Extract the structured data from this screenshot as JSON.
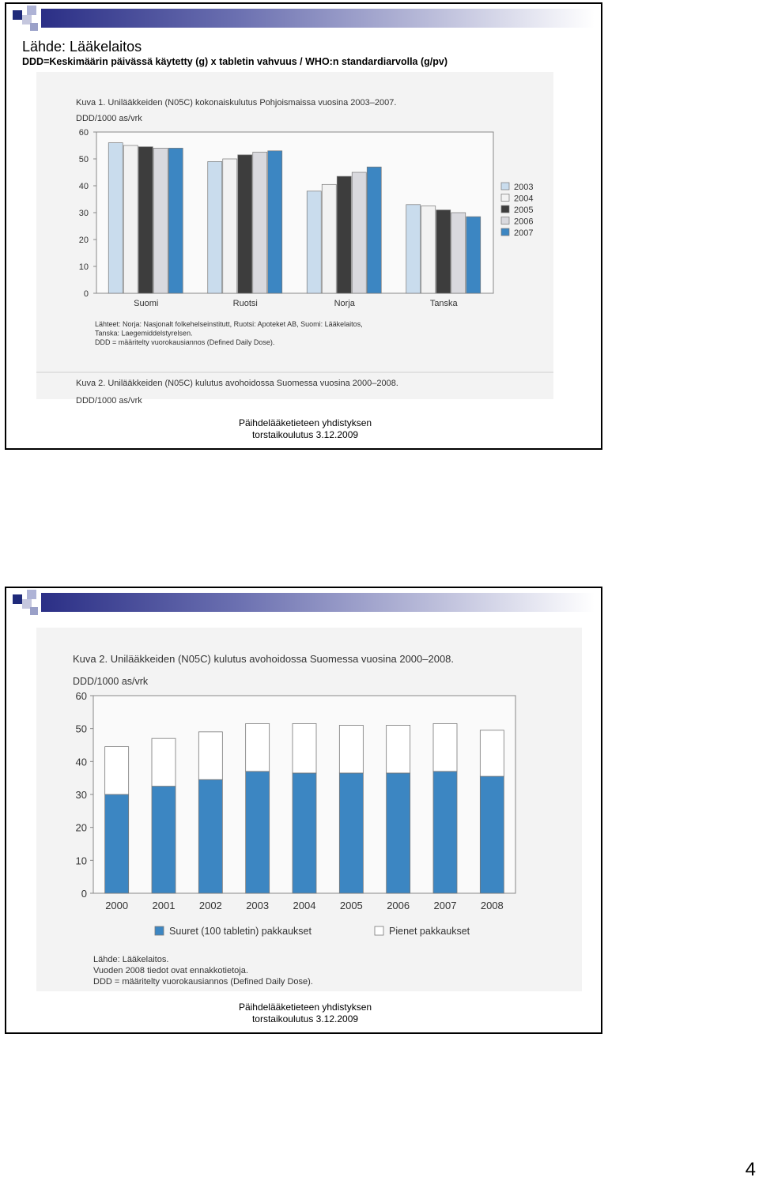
{
  "slides": [
    {
      "title": "Lähde: Lääkelaitos",
      "subtitle": "DDD=Keskimäärin päivässä käytetty (g) x tabletin vahvuus / WHO:n standardiarvolla (g/pv)",
      "footer_line1": "Päihdelääketieteen yhdistyksen",
      "footer_line2": "torstaikoulutus 3.12.2009"
    },
    {
      "footer_line1": "Päihdelääketieteen yhdistyksen",
      "footer_line2": "torstaikoulutus 3.12.2009"
    }
  ],
  "page_number": "4",
  "chart_data": [
    {
      "type": "bar",
      "title": "Kuva 1. Unilääkkeiden (N05C) kokonaiskulutus Pohjoismaissa vuosina 2003–2007.",
      "ylabel": "DDD/1000 as/vrk",
      "xlabel": "",
      "ylim": [
        0,
        60
      ],
      "yticks": [
        "0",
        "10",
        "20",
        "30",
        "40",
        "50",
        "60"
      ],
      "categories": [
        "Suomi",
        "Ruotsi",
        "Norja",
        "Tanska"
      ],
      "series": [
        {
          "name": "2003",
          "color": "#c9dced",
          "values": [
            56,
            49,
            38,
            33
          ]
        },
        {
          "name": "2004",
          "color": "#f2f2f2",
          "values": [
            55,
            50,
            40.5,
            32.5
          ]
        },
        {
          "name": "2005",
          "color": "#3d3d3d",
          "values": [
            54.5,
            51.5,
            43.5,
            31
          ]
        },
        {
          "name": "2006",
          "color": "#d9d9de",
          "values": [
            54,
            52.5,
            45,
            30
          ]
        },
        {
          "name": "2007",
          "color": "#3c86c2",
          "values": [
            54,
            53,
            47,
            28.5
          ]
        }
      ],
      "legend_position": "right",
      "notes": [
        "Lähteet: Norja: Nasjonalt folkehelseinstitutt, Ruotsi: Apoteket AB, Suomi: Lääkelaitos,",
        "Tanska: Laegemiddelstyrelsen.",
        "DDD = määritelty vuorokausiannos (Defined Daily Dose)."
      ],
      "cut_title": "Kuva 2. Unilääkkeiden (N05C) kulutus avohoidossa Suomessa vuosina 2000–2008.",
      "cut_ylabel": "DDD/1000 as/vrk"
    },
    {
      "type": "bar",
      "stacked": true,
      "title": "Kuva 2. Unilääkkeiden (N05C) kulutus avohoidossa Suomessa vuosina 2000–2008.",
      "ylabel": "DDD/1000 as/vrk",
      "xlabel": "",
      "ylim": [
        0,
        60
      ],
      "yticks": [
        "0",
        "10",
        "20",
        "30",
        "40",
        "50",
        "60"
      ],
      "categories": [
        "2000",
        "2001",
        "2002",
        "2003",
        "2004",
        "2005",
        "2006",
        "2007",
        "2008"
      ],
      "series": [
        {
          "name": "Suuret (100 tabletin) pakkaukset",
          "color": "#3c86c2",
          "values": [
            30,
            32.5,
            34.5,
            37,
            36.5,
            36.5,
            36.5,
            37,
            35.5
          ]
        },
        {
          "name": "Pienet pakkaukset",
          "color": "#ffffff",
          "values": [
            14.5,
            14.5,
            14.5,
            14.5,
            15,
            14.5,
            14.5,
            14.5,
            14
          ]
        }
      ],
      "legend_position": "bottom",
      "notes": [
        "Lähde: Lääkelaitos.",
        "Vuoden 2008 tiedot ovat ennakkotietoja.",
        "DDD = määritelty vuorokausiannos (Defined Daily Dose)."
      ]
    }
  ]
}
